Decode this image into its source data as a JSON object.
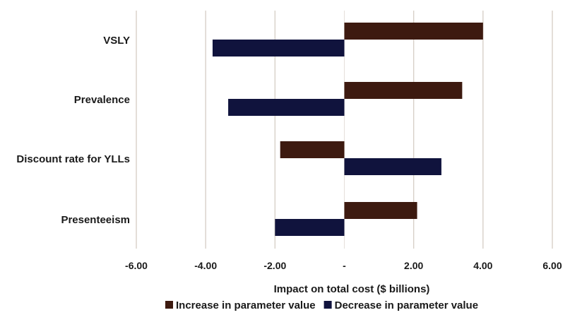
{
  "chart_data": {
    "type": "bar",
    "orientation": "horizontal",
    "categories": [
      "VSLY",
      "Prevalence",
      "Discount rate for YLLs",
      "Presenteeism"
    ],
    "series": [
      {
        "name": "Increase in parameter value",
        "color": "#3d1a10",
        "values": [
          4.0,
          3.4,
          -1.85,
          2.1
        ]
      },
      {
        "name": "Decrease in parameter value",
        "color": "#10133d",
        "values": [
          -3.8,
          -3.35,
          2.8,
          -2.0
        ]
      }
    ],
    "xlabel": "Impact on total cost ($ billions)",
    "xlim": [
      -6,
      6
    ],
    "x_ticks": [
      -6,
      -4,
      -2,
      0,
      2,
      4,
      6
    ],
    "x_tick_labels": [
      "-6.00",
      "-4.00",
      "-2.00",
      "-",
      "2.00",
      "4.00",
      "6.00"
    ],
    "grid": "vertical",
    "grid_color": "#d8d0c8",
    "legend_position": "bottom"
  }
}
